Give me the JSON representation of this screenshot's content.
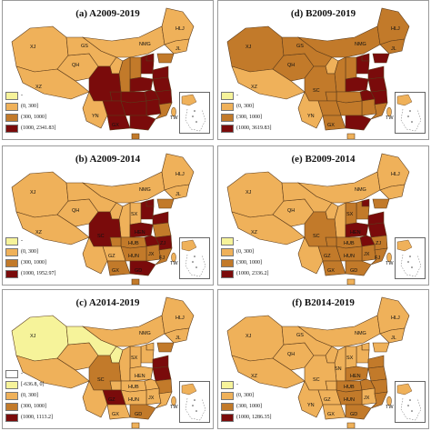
{
  "colors": {
    "c0": "#f6f39a",
    "c1": "#efb15a",
    "c2": "#c27a2a",
    "c3": "#7a0b0b",
    "border": "#5a3a1a"
  },
  "panels": [
    {
      "id": "a",
      "title": "(a)  A2009-2019",
      "legend": [
        "-",
        "(0, 300]",
        "(300, 1000]",
        "(1000, 2341.83]"
      ],
      "fills": {
        "XJ": 1,
        "XZ": 1,
        "QH": 1,
        "GS": 1,
        "NMG": 1,
        "HLJ": 1,
        "JL": 1,
        "LN": 2,
        "SC": 3,
        "YN": 1,
        "GZ": 3,
        "GX": 3,
        "GD": 3,
        "HUN": 3,
        "HUB": 3,
        "HEN": 3,
        "SD": 3,
        "JS": 3,
        "ZJ": 3,
        "JX": 3,
        "FJ": 2,
        "HAN": 2,
        "SX": 2,
        "HEB": 3,
        "BJ": 3,
        "SN": 2,
        "NX": 1,
        "CQ": 3,
        "AH": 3
      },
      "labels": {
        "XJ": "XJ",
        "GS": "GS",
        "QH": "QH",
        "XZ": "XZ",
        "NMG": "NMG",
        "HLJ": "HLJ",
        "JL": "JL",
        "YN": "YN",
        "GX": "GX",
        "HAN": "HAN",
        "TW": "TW"
      }
    },
    {
      "id": "d",
      "title": "(d)  B2009-2019",
      "legend": [
        "-",
        "(0, 300]",
        "(300, 1000]",
        "(1000, 3619.83]"
      ],
      "fills": {
        "XJ": 2,
        "XZ": 1,
        "QH": 2,
        "GS": 2,
        "NMG": 2,
        "HLJ": 2,
        "JL": 2,
        "LN": 3,
        "SC": 2,
        "YN": 1,
        "GZ": 2,
        "GX": 2,
        "GD": 3,
        "HUN": 2,
        "HUB": 2,
        "HEN": 3,
        "SD": 3,
        "JS": 3,
        "ZJ": 3,
        "JX": 2,
        "FJ": 2,
        "HAN": 1,
        "SX": 2,
        "HEB": 3,
        "BJ": 3,
        "SN": 2,
        "NX": 1,
        "CQ": 2,
        "AH": 3
      },
      "labels": {
        "XJ": "XJ",
        "GS": "GS",
        "QH": "QH",
        "XZ": "XZ",
        "NMG": "NMG",
        "HLJ": "HLJ",
        "JL": "JL",
        "SC": "SC",
        "YN": "YN",
        "GX": "GX",
        "HAN": "HAN",
        "TW": "TW"
      }
    },
    {
      "id": "b",
      "title": "(b)  A2009-2014",
      "legend": [
        "-",
        "(0, 300]",
        "(300, 1000]",
        "(1000, 1952.97]"
      ],
      "fills": {
        "XJ": 1,
        "XZ": 1,
        "QH": 1,
        "GS": 1,
        "NMG": 1,
        "HLJ": 1,
        "JL": 1,
        "LN": 2,
        "SC": 3,
        "YN": 1,
        "GZ": 1,
        "GX": 2,
        "GD": 3,
        "HUN": 2,
        "HUB": 2,
        "HEN": 3,
        "SD": 3,
        "JS": 2,
        "ZJ": 3,
        "JX": 2,
        "FJ": 2,
        "HAN": 2,
        "SX": 1,
        "HEB": 3,
        "BJ": 3,
        "SN": 1,
        "NX": 1,
        "CQ": 2,
        "AH": 3
      },
      "labels": {
        "XJ": "XJ",
        "QH": "QH",
        "XZ": "XZ",
        "NMG": "NMG",
        "HLJ": "HLJ",
        "JL": "JL",
        "SX": "SX",
        "HEN": "HEN",
        "SC": "SC",
        "HUB": "HUB",
        "GZ": "GZ",
        "HUN": "HUN",
        "JX": "JX",
        "ZJ": "ZJ",
        "FJ": "FJ",
        "GX": "GX",
        "GD": "GD",
        "HAN": "HAN",
        "TW": "TW"
      }
    },
    {
      "id": "e",
      "title": "(e)  B2009-2014",
      "legend": [
        "-",
        "(0, 300]",
        "(300, 1000]",
        "(1000, 2336.2]"
      ],
      "fills": {
        "XJ": 1,
        "XZ": 1,
        "QH": 1,
        "GS": 1,
        "NMG": 1,
        "HLJ": 1,
        "JL": 1,
        "LN": 2,
        "SC": 2,
        "YN": 1,
        "GZ": 2,
        "GX": 2,
        "GD": 2,
        "HUN": 2,
        "HUB": 2,
        "HEN": 3,
        "SD": 3,
        "JS": 3,
        "ZJ": 2,
        "JX": 2,
        "FJ": 2,
        "HAN": 1,
        "SX": 2,
        "HEB": 2,
        "BJ": 3,
        "SN": 1,
        "NX": 1,
        "CQ": 2,
        "AH": 3
      },
      "labels": {
        "XJ": "XJ",
        "QH": "QH",
        "XZ": "XZ",
        "NMG": "NMG",
        "HLJ": "HLJ",
        "SX": "SX",
        "SC": "SC",
        "HEN": "HEN",
        "HUB": "HUB",
        "GZ": "GZ",
        "HUN": "HUN",
        "JX": "JX",
        "ZJ": "ZJ",
        "FJ": "FJ",
        "GX": "GX",
        "GD": "GD",
        "HAN": "HAN",
        "TW": "TW"
      }
    },
    {
      "id": "c",
      "title": "(c)  A2014-2019",
      "legend": [
        "-",
        "[-636.8, 0]",
        "(0, 300]",
        "(300, 1000]",
        "(1000, 1113.2]"
      ],
      "fills": {
        "XJ": 0,
        "XZ": 1,
        "QH": 1,
        "GS": 0,
        "NMG": 1,
        "HLJ": 1,
        "JL": 1,
        "LN": 2,
        "SC": 2,
        "YN": 1,
        "GZ": 3,
        "GX": 1,
        "GD": 2,
        "HUN": 1,
        "HUB": 1,
        "HEN": 1,
        "SD": 3,
        "JS": 3,
        "ZJ": 2,
        "JX": 1,
        "FJ": 1,
        "HAN": 1,
        "SX": 1,
        "HEB": 1,
        "BJ": 1,
        "SN": 1,
        "NX": 0,
        "CQ": 1,
        "AH": 1
      },
      "labels": {
        "XJ": "XJ",
        "NMG": "NMG",
        "HLJ": "HLJ",
        "JL": "JL",
        "SX": "SX",
        "SC": "SC",
        "HEN": "HEN",
        "HUB": "HUB",
        "HUN": "HUN",
        "GZ": "GZ",
        "JX": "JX",
        "GX": "GX",
        "GD": "GD",
        "HAN": "HAN",
        "TW": "TW"
      }
    },
    {
      "id": "f",
      "title": "(f)  B2014-2019",
      "legend": [
        "-",
        "(0, 300]",
        "(300, 1000]",
        "(1000, 1286.35]"
      ],
      "fills": {
        "XJ": 1,
        "XZ": 1,
        "QH": 1,
        "GS": 1,
        "NMG": 1,
        "HLJ": 1,
        "JL": 1,
        "LN": 1,
        "SC": 1,
        "YN": 1,
        "GZ": 1,
        "GX": 1,
        "GD": 2,
        "HUN": 2,
        "HUB": 2,
        "HEN": 2,
        "SD": 2,
        "JS": 2,
        "ZJ": 2,
        "JX": 1,
        "FJ": 2,
        "HAN": 1,
        "SX": 1,
        "HEB": 1,
        "BJ": 1,
        "SN": 1,
        "NX": 1,
        "CQ": 1,
        "AH": 2
      },
      "labels": {
        "XJ": "XJ",
        "GS": "GS",
        "QH": "QH",
        "XZ": "XZ",
        "NMG": "NMG",
        "HLJ": "HLJ",
        "JL": "JL",
        "SX": "SX",
        "SN": "SN",
        "HEN": "HEN",
        "SC": "SC",
        "HUB": "HUB",
        "GZ": "GZ",
        "HUN": "HUN",
        "JX": "JX",
        "YN": "YN",
        "GX": "GX",
        "GD": "GD",
        "HAN": "HAN",
        "TW": "TW"
      }
    }
  ]
}
